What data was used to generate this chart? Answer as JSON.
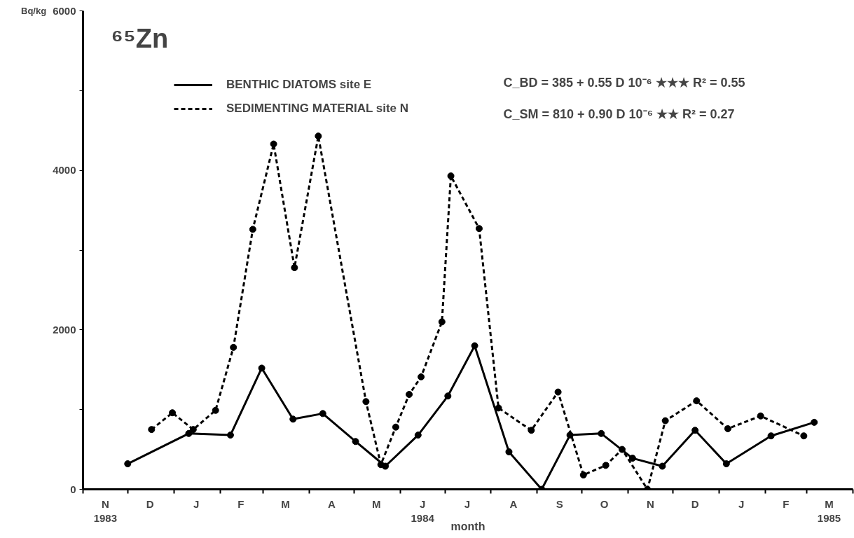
{
  "chart_data": {
    "type": "line",
    "title": "⁶⁵Zn",
    "ylabel": "Bq/kg",
    "xlabel": "month",
    "xlim": [
      "1983-11-01",
      "1985-04-01"
    ],
    "ylim": [
      0,
      6000
    ],
    "xticks": [
      {
        "value": "1983-11-01",
        "label": null
      },
      {
        "value": "1983-12-01",
        "label": null
      },
      {
        "value": "1984-01-01",
        "label": null
      },
      {
        "value": "1984-02-01",
        "label": null
      },
      {
        "value": "1984-03-01",
        "label": null
      },
      {
        "value": "1984-04-01",
        "label": null
      },
      {
        "value": "1984-05-01",
        "label": null
      },
      {
        "value": "1984-06-01",
        "label": null
      },
      {
        "value": "1984-07-01",
        "label": null
      },
      {
        "value": "1984-08-01",
        "label": null
      },
      {
        "value": "1984-09-01",
        "label": null
      },
      {
        "value": "1984-10-01",
        "label": null
      },
      {
        "value": "1984-11-01",
        "label": null
      },
      {
        "value": "1984-12-01",
        "label": null
      },
      {
        "value": "1985-01-01",
        "label": null
      },
      {
        "value": "1985-02-01",
        "label": null
      },
      {
        "value": "1985-03-01",
        "label": null
      },
      {
        "value": "1985-04-01",
        "label": null
      },
      {
        "value": "1983-11-16",
        "label": "N\n1983"
      },
      {
        "value": "1983-12-16",
        "label": "D"
      },
      {
        "value": "1984-01-16",
        "label": "J"
      },
      {
        "value": "1984-02-15",
        "label": "F"
      },
      {
        "value": "1984-03-16",
        "label": "M"
      },
      {
        "value": "1984-04-16",
        "label": "A"
      },
      {
        "value": "1984-05-16",
        "label": "M"
      },
      {
        "value": "1984-06-16",
        "label": "J\n1984"
      },
      {
        "value": "1984-07-16",
        "label": "J"
      },
      {
        "value": "1984-08-16",
        "label": "A"
      },
      {
        "value": "1984-09-16",
        "label": "S"
      },
      {
        "value": "1984-10-16",
        "label": "O"
      },
      {
        "value": "1984-11-16",
        "label": "N"
      },
      {
        "value": "1984-12-16",
        "label": "D"
      },
      {
        "value": "1985-01-16",
        "label": "J"
      },
      {
        "value": "1985-02-15",
        "label": "F"
      },
      {
        "value": "1985-03-16",
        "label": "M\n1985"
      }
    ],
    "yticks": [
      0,
      {
        "value": 1000,
        "label": null
      },
      2000,
      {
        "value": 3000,
        "label": null
      },
      4000,
      {
        "value": 5000,
        "label": null
      },
      6000
    ],
    "grid": false,
    "legend": "top left",
    "marker": "circle",
    "series": [
      {
        "name": "BENTHIC DIATOMS site E",
        "color": "#000000",
        "line_style": "solid",
        "x": [
          "1983-12-01",
          "1984-01-11",
          "1984-02-08",
          "1984-02-29",
          "1984-03-21",
          "1984-04-10",
          "1984-05-02",
          "1984-05-22",
          "1984-06-13",
          "1984-07-03",
          "1984-07-21",
          "1984-08-13",
          "1984-09-04",
          "1984-09-23",
          "1984-10-14",
          "1984-11-04",
          "1984-11-24",
          "1984-12-16",
          "1985-01-06",
          "1985-02-05",
          "1985-03-06"
        ],
        "values": [
          320,
          700,
          680,
          1520,
          880,
          950,
          600,
          290,
          680,
          1170,
          1800,
          470,
          0,
          680,
          700,
          390,
          290,
          740,
          320,
          670,
          840
        ]
      },
      {
        "name": "SEDIMENTING MATERIAL site N",
        "color": "#000000",
        "line_style": "dashed",
        "x": [
          "1983-12-17",
          "1983-12-31",
          "1984-01-14",
          "1984-01-29",
          "1984-02-10",
          "1984-02-23",
          "1984-03-08",
          "1984-03-22",
          "1984-04-07",
          "1984-05-09",
          "1984-05-19",
          "1984-05-29",
          "1984-06-07",
          "1984-06-15",
          "1984-06-29",
          "1984-07-05",
          "1984-07-24",
          "1984-08-06",
          "1984-08-28",
          "1984-09-15",
          "1984-10-02",
          "1984-10-17",
          "1984-10-28",
          "1984-11-14",
          "1984-11-26",
          "1984-12-17",
          "1985-01-07",
          "1985-01-29",
          "1985-02-27"
        ],
        "values": [
          750,
          960,
          750,
          990,
          1780,
          3260,
          4330,
          2780,
          4430,
          1100,
          310,
          780,
          1190,
          1410,
          2100,
          3930,
          3270,
          1020,
          740,
          1220,
          180,
          300,
          500,
          0,
          860,
          1110,
          760,
          920,
          670
        ]
      }
    ],
    "annotations": [
      "C_BD = 385 + 0.55 D 10⁻⁶ ★★★ R² = 0.55",
      "C_SM = 810 + 0.90 D 10⁻⁶ ★★   R² = 0.27"
    ]
  }
}
